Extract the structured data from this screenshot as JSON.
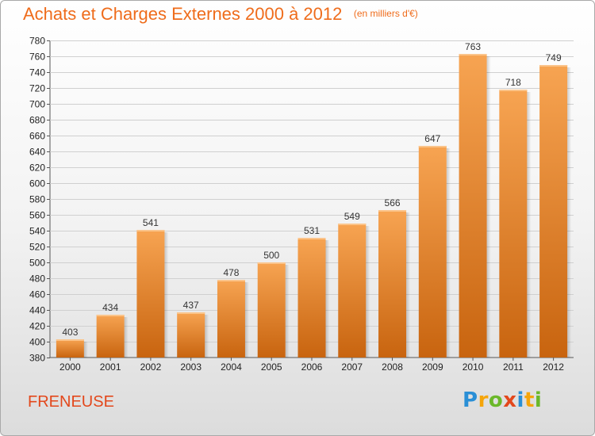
{
  "title": "Achats et Charges Externes 2000 à 2012",
  "subtitle": "(en milliers d'€)",
  "place": "FRENEUSE",
  "logo": {
    "letters": [
      "P",
      "r",
      "o",
      "x",
      "i",
      "t",
      "i"
    ],
    "colors": [
      "#2a8fd6",
      "#f5a50a",
      "#6bb82a",
      "#e3481c",
      "#2a8fd6",
      "#f5a50a",
      "#6bb82a"
    ]
  },
  "colors": {
    "accent": "#ef6c1b",
    "bar_top": "#f7a452",
    "bar_bottom": "#c8640f"
  },
  "chart_data": {
    "type": "bar",
    "categories": [
      "2000",
      "2001",
      "2002",
      "2003",
      "2004",
      "2005",
      "2006",
      "2007",
      "2008",
      "2009",
      "2010",
      "2011",
      "2012"
    ],
    "values": [
      403,
      434,
      541,
      437,
      478,
      500,
      531,
      549,
      566,
      647,
      763,
      718,
      749
    ],
    "title": "Achats et Charges Externes 2000 à 2012",
    "subtitle": "(en milliers d'€)",
    "xlabel": "",
    "ylabel": "",
    "ylim": [
      380,
      780
    ],
    "ytick_step": 20,
    "grid": true
  }
}
